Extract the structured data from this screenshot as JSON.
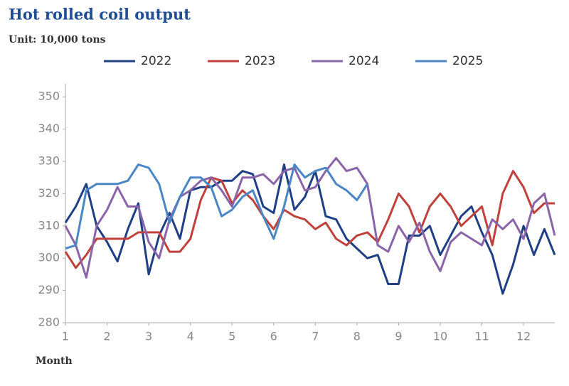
{
  "chart_data": {
    "type": "line",
    "title": "Hot rolled coil output",
    "subtitle": "Unit: 10,000 tons",
    "x_label": "Month",
    "x": [
      1,
      1.25,
      1.5,
      1.75,
      2,
      2.25,
      2.5,
      2.75,
      3,
      3.25,
      3.5,
      3.75,
      4,
      4.25,
      4.5,
      4.75,
      5,
      5.25,
      5.5,
      5.75,
      6,
      6.25,
      6.5,
      6.75,
      7,
      7.25,
      7.5,
      7.75,
      8,
      8.25,
      8.5,
      8.75,
      9,
      9.25,
      9.5,
      9.75,
      10,
      10.25,
      10.5,
      10.75,
      11,
      11.25,
      11.5,
      11.75,
      12,
      12.25,
      12.5,
      12.75
    ],
    "xlim": [
      1,
      12.75
    ],
    "xticks": [
      1,
      2,
      3,
      4,
      5,
      6,
      7,
      8,
      9,
      10,
      11,
      12
    ],
    "ylim": [
      280,
      354
    ],
    "yticks": [
      280,
      290,
      300,
      310,
      320,
      330,
      340,
      350
    ],
    "series": [
      {
        "name": "2022",
        "color": "#1f3f85",
        "values": [
          311,
          316,
          323,
          310,
          305,
          299,
          309,
          317,
          295,
          307,
          314,
          306,
          321,
          322,
          322,
          324,
          324,
          327,
          326,
          316,
          314,
          329,
          315,
          319,
          327,
          313,
          312,
          306,
          303,
          300,
          301,
          292,
          292,
          307,
          307,
          310,
          301,
          307,
          313,
          316,
          308,
          301,
          289,
          298,
          310,
          301,
          309,
          301
        ]
      },
      {
        "name": "2023",
        "color": "#c0413b",
        "values": [
          302,
          297,
          301,
          306,
          306,
          306,
          306,
          308,
          308,
          308,
          302,
          302,
          306,
          318,
          325,
          324,
          317,
          321,
          318,
          313,
          309,
          315,
          313,
          312,
          309,
          311,
          306,
          304,
          307,
          308,
          305,
          312,
          320,
          316,
          308,
          316,
          320,
          316,
          310,
          313,
          316,
          304,
          320,
          327,
          322,
          314,
          317,
          317
        ]
      },
      {
        "name": "2024",
        "color": "#8a64a8",
        "values": [
          310,
          304,
          294,
          310,
          315,
          322,
          316,
          316,
          305,
          300,
          312,
          319,
          321,
          324,
          325,
          321,
          316,
          325,
          325,
          326,
          323,
          327,
          328,
          321,
          322,
          327,
          331,
          327,
          328,
          323,
          304,
          302,
          310,
          305,
          311,
          302,
          296,
          305,
          308,
          306,
          304,
          312,
          309,
          312,
          306,
          317,
          320,
          307
        ]
      },
      {
        "name": "2025",
        "color": "#4a86c5",
        "values": [
          303,
          304,
          321,
          323,
          323,
          323,
          324,
          329,
          328,
          323,
          311,
          319,
          325,
          325,
          322,
          313,
          315,
          319,
          321,
          313,
          306,
          316,
          329,
          325,
          327,
          328,
          323,
          321,
          318,
          323,
          null,
          null,
          null,
          null,
          null,
          null,
          null,
          null,
          null,
          null,
          null,
          null,
          null,
          null,
          null,
          null,
          null,
          null
        ]
      }
    ]
  }
}
